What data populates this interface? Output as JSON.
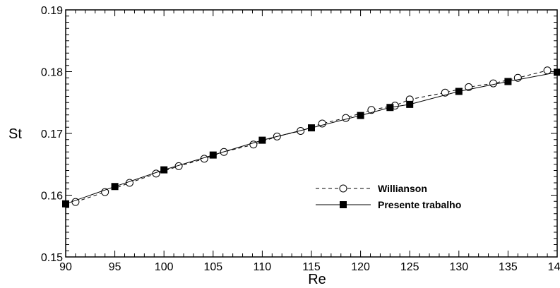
{
  "chart_data": {
    "type": "line",
    "xlabel": "Re",
    "ylabel": "St",
    "xlim": [
      90,
      140
    ],
    "ylim": [
      0.15,
      0.19
    ],
    "x_ticks": [
      90,
      95,
      100,
      105,
      110,
      115,
      120,
      125,
      130,
      135,
      140
    ],
    "x_tick_labels": [
      "90",
      "95",
      "100",
      "105",
      "110",
      "115",
      "120",
      "125",
      "130",
      "135",
      "140"
    ],
    "y_ticks": [
      0.15,
      0.16,
      0.17,
      0.18,
      0.19
    ],
    "y_tick_labels": [
      "0.15",
      "0.16",
      "0.17",
      "0.18",
      "0.19"
    ],
    "grid": false,
    "legend_position": "lower-right",
    "series": [
      {
        "name": "Willianson",
        "line_style": "dashed",
        "marker": "open-circle",
        "color": "#000000",
        "x": [
          91.0,
          94.0,
          96.5,
          99.2,
          101.5,
          104.1,
          106.1,
          109.1,
          111.5,
          113.9,
          116.1,
          118.5,
          121.1,
          123.5,
          125.0,
          128.6,
          131.0,
          133.5,
          136.0,
          139.0
        ],
        "y": [
          0.1589,
          0.1605,
          0.162,
          0.1635,
          0.1647,
          0.1659,
          0.167,
          0.1682,
          0.1695,
          0.1704,
          0.1716,
          0.1725,
          0.1738,
          0.1745,
          0.1755,
          0.1766,
          0.1775,
          0.1781,
          0.179,
          0.1802
        ]
      },
      {
        "name": "Presente trabalho",
        "line_style": "solid",
        "marker": "filled-square",
        "color": "#000000",
        "x": [
          90.0,
          95.0,
          100.0,
          105.0,
          110.0,
          115.0,
          120.0,
          123.0,
          125.0,
          130.0,
          135.0,
          140.0
        ],
        "y": [
          0.1586,
          0.1614,
          0.1641,
          0.1665,
          0.1689,
          0.1709,
          0.1729,
          0.1742,
          0.1747,
          0.1768,
          0.1784,
          0.1799
        ]
      }
    ]
  }
}
